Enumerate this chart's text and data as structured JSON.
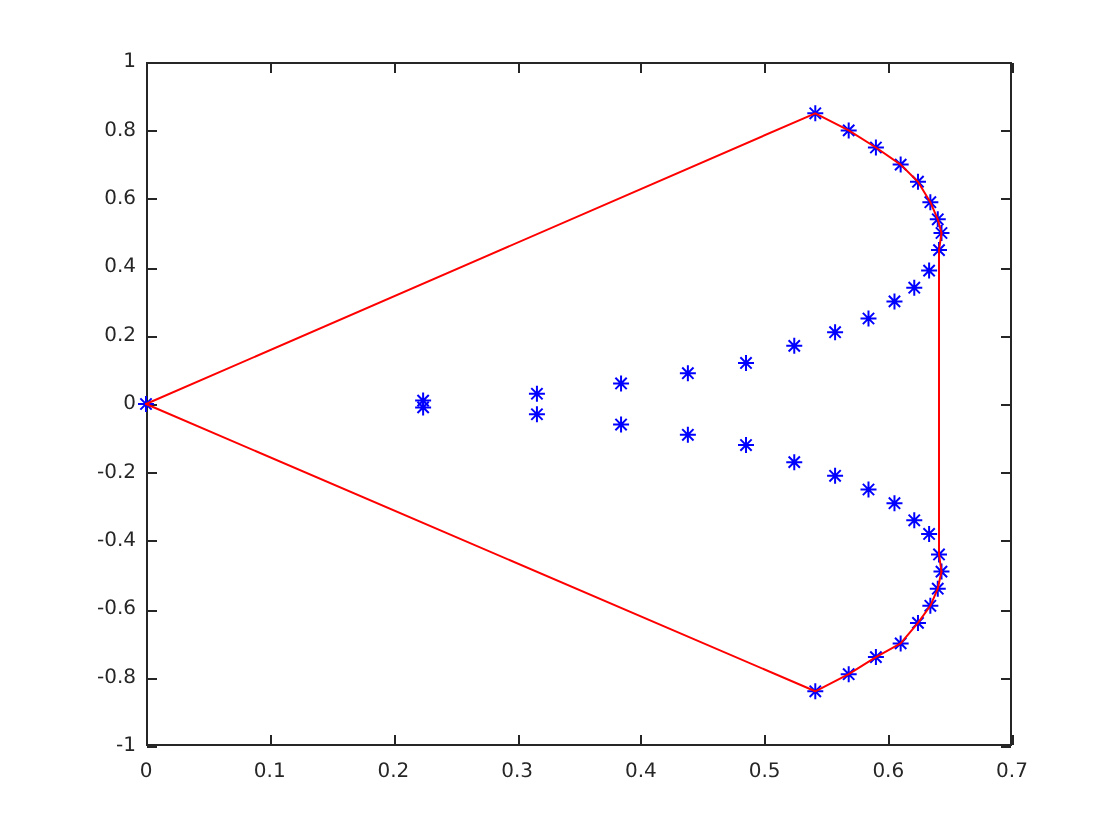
{
  "chart_data": {
    "type": "scatter",
    "marker": "cross",
    "xlim": [
      0,
      0.7
    ],
    "ylim": [
      -1,
      1
    ],
    "xticks": [
      0,
      0.1,
      0.2,
      0.3,
      0.4,
      0.5,
      0.6,
      0.7
    ],
    "yticks": [
      -1,
      -0.8,
      -0.6,
      -0.4,
      -0.2,
      0,
      0.2,
      0.4,
      0.6,
      0.8,
      1
    ],
    "series": [
      {
        "color": "#0000ff",
        "x": [
          0,
          0.224,
          0.316,
          0.384,
          0.438,
          0.485,
          0.524,
          0.557,
          0.584,
          0.605,
          0.621,
          0.633,
          0.641,
          0.643,
          0.64,
          0.634,
          0.624,
          0.61,
          0.59,
          0.568,
          0.541,
          0.224,
          0.316,
          0.384,
          0.438,
          0.485,
          0.524,
          0.557,
          0.584,
          0.605,
          0.621,
          0.633,
          0.641,
          0.643,
          0.64,
          0.634,
          0.624,
          0.61,
          0.59,
          0.568,
          0.541
        ],
        "values": [
          0,
          0.01,
          0.03,
          0.06,
          0.09,
          0.12,
          0.17,
          0.21,
          0.25,
          0.3,
          0.34,
          0.39,
          0.45,
          0.5,
          0.54,
          0.59,
          0.65,
          0.7,
          0.75,
          0.8,
          0.85,
          -0.01,
          -0.03,
          -0.06,
          -0.09,
          -0.12,
          -0.17,
          -0.21,
          -0.25,
          -0.29,
          -0.34,
          -0.38,
          -0.44,
          -0.49,
          -0.54,
          -0.59,
          -0.64,
          -0.7,
          -0.74,
          -0.79,
          -0.84
        ]
      },
      {
        "type": "line",
        "color": "#ff0000",
        "marker": "none",
        "line_style": "solid",
        "x": [
          0,
          0.541,
          0.568,
          0.59,
          0.61,
          0.624,
          0.634,
          0.64,
          0.643
        ],
        "values": [
          0,
          0.85,
          0.8,
          0.75,
          0.7,
          0.65,
          0.59,
          0.54,
          0.5
        ]
      },
      {
        "type": "line",
        "color": "#ff0000",
        "marker": "none",
        "line_style": "solid",
        "x": [
          0.643,
          0.641,
          0.641,
          0.643
        ],
        "values": [
          0.5,
          0.45,
          -0.44,
          -0.49
        ]
      },
      {
        "type": "line",
        "color": "#ff0000",
        "marker": "none",
        "line_style": "solid",
        "x": [
          0,
          0.541,
          0.568,
          0.59,
          0.61,
          0.624,
          0.634,
          0.64,
          0.643
        ],
        "values": [
          0,
          -0.84,
          -0.79,
          -0.74,
          -0.7,
          -0.64,
          -0.59,
          -0.54,
          -0.49
        ]
      }
    ]
  }
}
